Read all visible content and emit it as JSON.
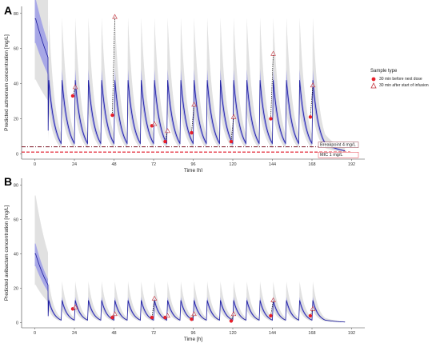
{
  "figure": {
    "panel_a_letter": "A",
    "panel_b_letter": "B"
  },
  "legend": {
    "title": "Sample type",
    "entries": [
      {
        "label": "30 min before next dose",
        "marker": "filled-circle",
        "color": "#e8202a"
      },
      {
        "label": "30 min after start of infusion",
        "marker": "open-triangle",
        "color": "#c0303a"
      }
    ]
  },
  "colors": {
    "median_line": "#1a1a9e",
    "pi_band": "#8f8fe8",
    "outer_band": "#c8c8c8",
    "breakpoint": "#7a1020",
    "mic": "#e01020",
    "drop_line": "#000000"
  },
  "chart_data": [
    {
      "type": "line",
      "panel": "A",
      "xlabel": "Time [h]",
      "ylabel": "Predicted aztreonam concentration [mg/L]",
      "xlim": [
        -8,
        200
      ],
      "ylim": [
        -3,
        84
      ],
      "xticks": [
        0,
        24,
        48,
        72,
        96,
        120,
        144,
        168,
        192
      ],
      "yticks": [
        0,
        20,
        40,
        60,
        80
      ],
      "grid": false,
      "dose_interval_h": 8,
      "n_doses": 22,
      "model": {
        "initial_peak": 77,
        "initial_trough": 55,
        "peak": 42,
        "trough": 6,
        "final_time": 176
      },
      "reference_lines": [
        {
          "label": "Breakpoint 4 mg/L",
          "value": 4,
          "style": "dashdot"
        },
        {
          "label": "MIC 1 mg/L",
          "value": 1,
          "style": "dashed"
        }
      ],
      "observations": {
        "before_next_dose": [
          {
            "x": 23,
            "y": 33
          },
          {
            "x": 47,
            "y": 22
          },
          {
            "x": 71,
            "y": 16
          },
          {
            "x": 79,
            "y": 7
          },
          {
            "x": 95,
            "y": 12
          },
          {
            "x": 119,
            "y": 7
          },
          {
            "x": 143,
            "y": 20
          },
          {
            "x": 167,
            "y": 21
          }
        ],
        "after_infusion_start": [
          {
            "x": 24.5,
            "y": 38
          },
          {
            "x": 48.5,
            "y": 78
          },
          {
            "x": 72.5,
            "y": 17
          },
          {
            "x": 80.5,
            "y": 13
          },
          {
            "x": 96.5,
            "y": 28
          },
          {
            "x": 120.5,
            "y": 21
          },
          {
            "x": 144.5,
            "y": 57
          },
          {
            "x": 168.5,
            "y": 39
          }
        ]
      }
    },
    {
      "type": "line",
      "panel": "B",
      "xlabel": "Time [h]",
      "ylabel": "Predicted avibactam concentration [mg/L]",
      "xlim": [
        -8,
        200
      ],
      "ylim": [
        -3,
        84
      ],
      "xticks": [
        0,
        24,
        48,
        72,
        96,
        120,
        144,
        168,
        192
      ],
      "yticks": [
        0,
        20,
        40,
        60,
        80
      ],
      "grid": false,
      "dose_interval_h": 8,
      "n_doses": 22,
      "model": {
        "initial_peak": 40,
        "initial_trough": 22,
        "peak": 13,
        "trough": 1.5,
        "final_time": 176
      },
      "observations": {
        "before_next_dose": [
          {
            "x": 23,
            "y": 8
          },
          {
            "x": 47,
            "y": 3
          },
          {
            "x": 71,
            "y": 3
          },
          {
            "x": 79,
            "y": 3
          },
          {
            "x": 95,
            "y": 2
          },
          {
            "x": 119,
            "y": 1
          },
          {
            "x": 143,
            "y": 4
          },
          {
            "x": 167,
            "y": 4
          }
        ],
        "after_infusion_start": [
          {
            "x": 24.5,
            "y": 9
          },
          {
            "x": 48.5,
            "y": 5
          },
          {
            "x": 72.5,
            "y": 14
          },
          {
            "x": 80.5,
            "y": 4
          },
          {
            "x": 96.5,
            "y": 5
          },
          {
            "x": 120.5,
            "y": 5
          },
          {
            "x": 144.5,
            "y": 13
          },
          {
            "x": 168.5,
            "y": 8
          }
        ]
      }
    }
  ]
}
